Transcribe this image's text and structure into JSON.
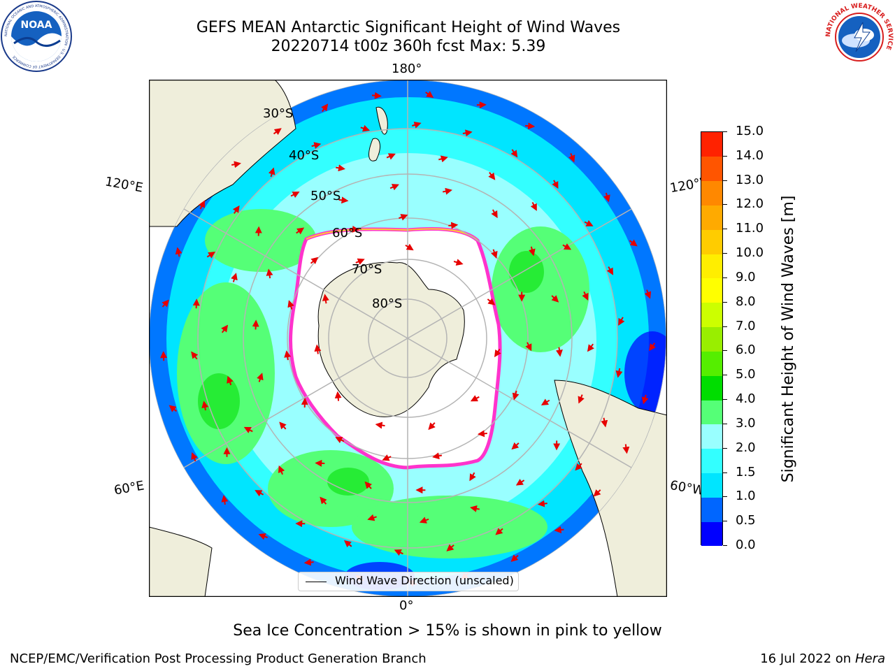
{
  "header": {
    "title_line1": "GEFS MEAN Antarctic Significant Height of Wind Waves",
    "title_line2": "20220714 t00z 360h fcst   Max: 5.39"
  },
  "logos": {
    "noaa_text": "NOAA",
    "noaa_ring_text": "NATIONAL OCEANIC AND ATMOSPHERIC ADMINISTRATION · U.S. DEPARTMENT OF COMMERCE",
    "nws_ring_text": "NATIONAL WEATHER SERVICE"
  },
  "map": {
    "longitude_labels": {
      "top": "180°",
      "bottom": "0°",
      "upper_left": "120°E",
      "upper_right": "120°W",
      "lower_left": "60°E",
      "lower_right": "60°W"
    },
    "latitude_labels": [
      "30°S",
      "40°S",
      "50°S",
      "60°S",
      "70°S",
      "80°S"
    ],
    "legend_text": "Wind Wave Direction (unscaled)",
    "colors": {
      "land": "#efeedb",
      "ice": "#ffffff",
      "ice_edge_pink": "#ff33cc",
      "ice_edge_yellow": "#ffcc33",
      "arrow": "#e60000",
      "grid": "#b4b4b4"
    }
  },
  "colorbar": {
    "title": "Significant Height of Wind Waves [m]",
    "ticks": [
      "0.0",
      "0.5",
      "1.0",
      "1.5",
      "2.0",
      "3.0",
      "4.0",
      "5.0",
      "6.0",
      "7.0",
      "8.0",
      "9.0",
      "10.0",
      "11.0",
      "12.0",
      "13.0",
      "14.0",
      "15.0"
    ],
    "colors": [
      "#0000ff",
      "#0066ff",
      "#00e5ff",
      "#33ffff",
      "#99ffff",
      "#55ff77",
      "#00dd00",
      "#55ee00",
      "#99ee00",
      "#ccff00",
      "#ffff00",
      "#ffee00",
      "#ffcc00",
      "#ffaa00",
      "#ff8800",
      "#ff5500",
      "#ff2200"
    ]
  },
  "notes": {
    "sea_ice": "Sea Ice Concentration > 15% is shown in pink to yellow",
    "footer_left": "NCEP/EMC/Verification Post Processing Product Generation Branch",
    "footer_date": "16 Jul 2022 on ",
    "footer_host": "Hera"
  }
}
